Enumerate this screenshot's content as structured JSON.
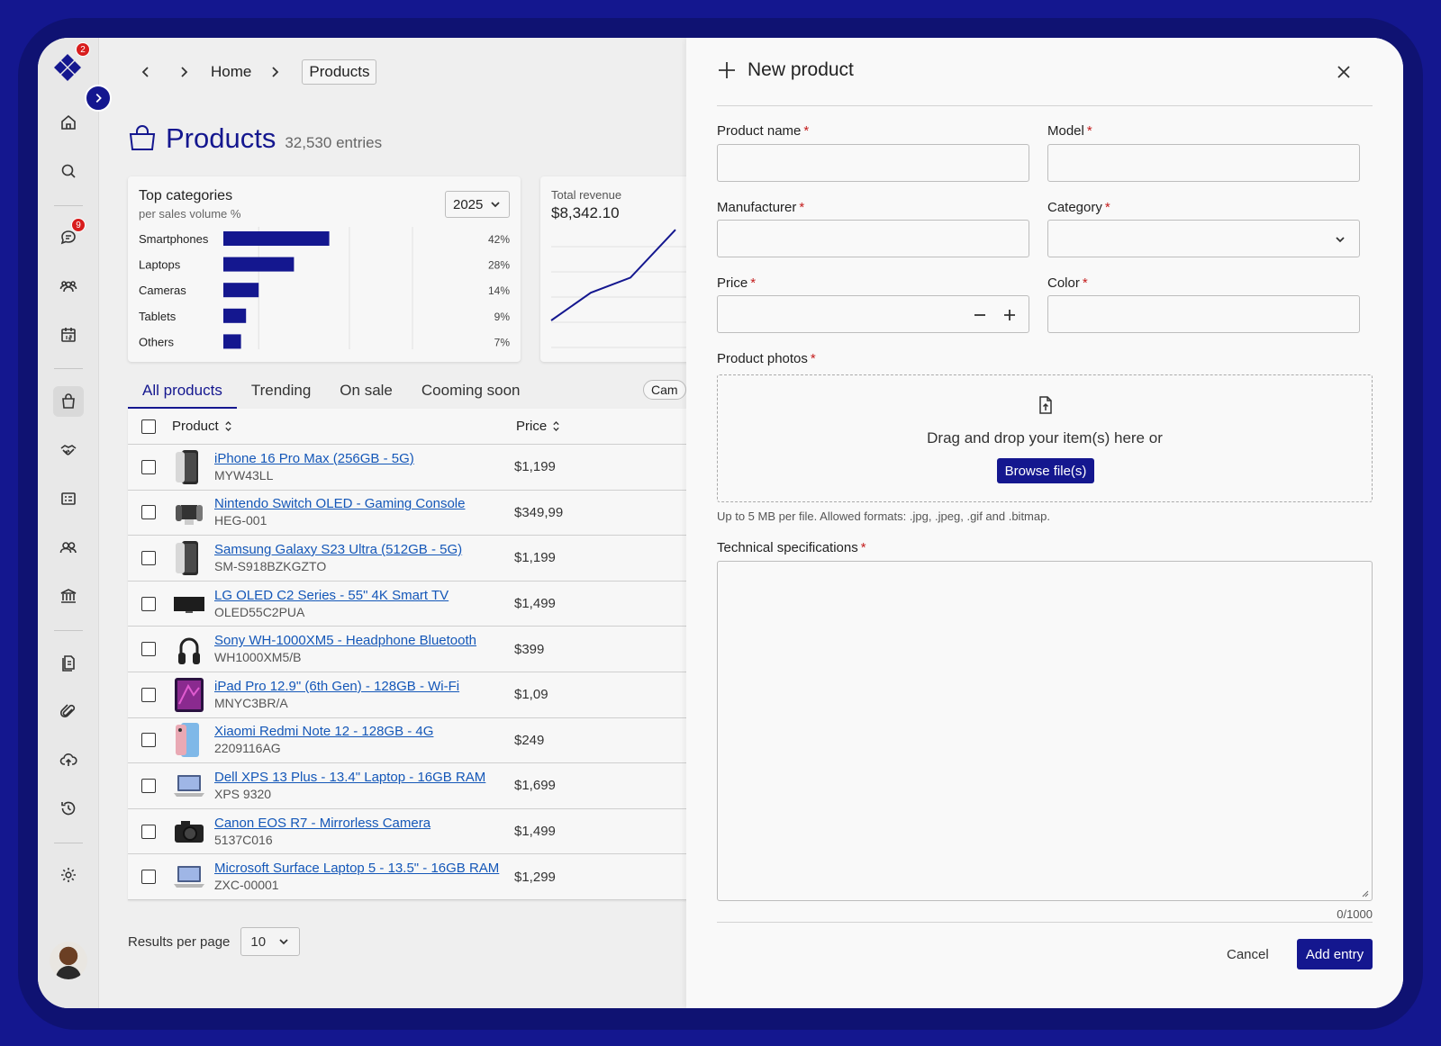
{
  "notifications": {
    "logo_badge": "2",
    "messages_badge": "9"
  },
  "breadcrumb": {
    "home": "Home",
    "current": "Products"
  },
  "page": {
    "title": "Products",
    "entries": "32,530 entries"
  },
  "categories_card": {
    "title": "Top categories",
    "subtitle": "per sales volume %",
    "year": "2025"
  },
  "chart_data": [
    {
      "type": "bar",
      "title": "Top categories",
      "subtitle": "per sales volume %",
      "categories": [
        "Smartphones",
        "Laptops",
        "Cameras",
        "Tablets",
        "Others"
      ],
      "values": [
        42,
        28,
        14,
        9,
        7
      ],
      "labels": [
        "42%",
        "28%",
        "14%",
        "9%",
        "7%"
      ],
      "xlim": [
        0,
        100
      ],
      "orientation": "horizontal",
      "color": "#14178f"
    },
    {
      "type": "line",
      "title": "Total revenue",
      "value_label": "$8,342.10",
      "values": [
        1,
        2.1,
        2.7,
        4.6
      ],
      "color": "#14178f"
    }
  ],
  "revenue": {
    "label": "Total revenue",
    "value": "$8,342.10"
  },
  "tabs": [
    "All products",
    "Trending",
    "On sale",
    "Cooming soon"
  ],
  "chip": "Cam",
  "table": {
    "columns": {
      "product": "Product",
      "price": "Price"
    },
    "rows": [
      {
        "name": "iPhone 16 Pro Max (256GB - 5G)",
        "code": "MYW43LL",
        "price": "$1,199",
        "icon": "phone"
      },
      {
        "name": "Nintendo Switch OLED - Gaming Console",
        "code": "HEG-001",
        "price": "$349,99",
        "icon": "console"
      },
      {
        "name": "Samsung Galaxy S23 Ultra (512GB - 5G)",
        "code": "SM-S918BZKGZTO",
        "price": "$1,199",
        "icon": "phone"
      },
      {
        "name": "LG OLED C2 Series - 55\" 4K Smart TV",
        "code": "OLED55C2PUA",
        "price": "$1,499",
        "icon": "tv"
      },
      {
        "name": "Sony WH-1000XM5 - Headphone Bluetooth",
        "code": "WH1000XM5/B",
        "price": "$399",
        "icon": "headphones"
      },
      {
        "name": "iPad Pro 12.9\" (6th Gen) - 128GB - Wi-Fi",
        "code": "MNYC3BR/A",
        "price": "$1,09",
        "icon": "tablet"
      },
      {
        "name": "Xiaomi Redmi Note 12 - 128GB - 4G",
        "code": "2209116AG",
        "price": "$249",
        "icon": "phone-light"
      },
      {
        "name": "Dell XPS 13 Plus - 13.4\" Laptop - 16GB RAM",
        "code": "XPS 9320",
        "price": "$1,699",
        "icon": "laptop"
      },
      {
        "name": "Canon EOS R7 - Mirrorless Camera",
        "code": "5137C016",
        "price": "$1,499",
        "icon": "camera"
      },
      {
        "name": "Microsoft Surface Laptop 5 - 13.5\" - 16GB RAM",
        "code": "ZXC-00001",
        "price": "$1,299",
        "icon": "laptop"
      }
    ]
  },
  "pager": {
    "label": "Results per page",
    "value": "10"
  },
  "drawer": {
    "title": "New product",
    "fields": {
      "product_name": "Product name",
      "model": "Model",
      "manufacturer": "Manufacturer",
      "category": "Category",
      "price": "Price",
      "color": "Color",
      "photos": "Product photos",
      "specs": "Technical specifications"
    },
    "required_mark": "*",
    "dropzone_text": "Drag and drop your item(s) here or",
    "browse_label": "Browse file(s)",
    "hint": "Up to 5 MB per file.  Allowed formats: .jpg, .jpeg, .gif and .bitmap.",
    "counter": "0/1000",
    "cancel_label": "Cancel",
    "submit_label": "Add entry"
  }
}
